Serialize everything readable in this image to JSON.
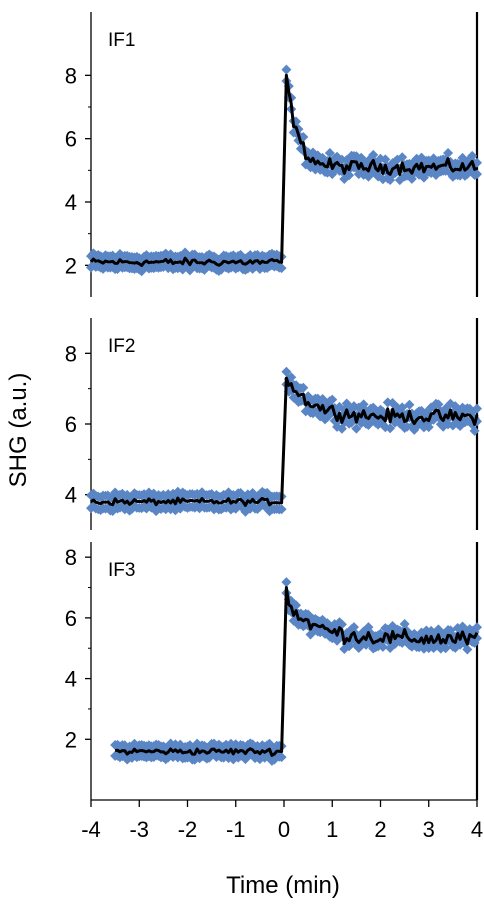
{
  "chart_data": {
    "type": "scatter",
    "shared_xlabel": "Time (min)",
    "shared_ylabel": "SHG (a.u.)",
    "xlim": [
      -4,
      4
    ],
    "x_ticks": [
      -4,
      -3,
      -2,
      -1,
      0,
      1,
      2,
      3,
      4
    ],
    "x_tick_labels": [
      "-4",
      "-3",
      "-2",
      "-1",
      "0",
      "1",
      "2",
      "3",
      "4"
    ],
    "marker_color": "#5b86c5",
    "line_color": "#000000",
    "panels": [
      {
        "label": "IF1",
        "ylim": [
          1,
          10
        ],
        "y_ticks": [
          2,
          4,
          6,
          8
        ],
        "y_tick_labels": [
          "2",
          "4",
          "6",
          "8"
        ],
        "x_start": -4.0,
        "series": [
          {
            "kind": "segment",
            "x_start": -4.0,
            "x_end": -0.05,
            "level": 2.1,
            "noise": 0.17
          },
          {
            "kind": "step",
            "x": 0.05,
            "peak": 8.0
          },
          {
            "kind": "decay",
            "x_start": 0.05,
            "x_end": 4.0,
            "from": 8.0,
            "to": 5.1,
            "rate": 0.22,
            "noise": 0.3
          }
        ]
      },
      {
        "label": "IF2",
        "ylim": [
          3,
          9
        ],
        "y_ticks": [
          4,
          6,
          8
        ],
        "y_tick_labels": [
          "4",
          "6",
          "8"
        ],
        "x_start": -4.0,
        "series": [
          {
            "kind": "segment",
            "x_start": -4.0,
            "x_end": -0.05,
            "level": 3.8,
            "noise": 0.13
          },
          {
            "kind": "step",
            "x": 0.05,
            "peak": 7.3
          },
          {
            "kind": "decay",
            "x_start": 0.05,
            "x_end": 4.0,
            "from": 7.3,
            "to": 6.2,
            "rate": 0.5,
            "noise": 0.28
          }
        ]
      },
      {
        "label": "IF3",
        "ylim": [
          0,
          8.5
        ],
        "y_ticks": [
          2,
          4,
          6,
          8
        ],
        "y_tick_labels": [
          "2",
          "4",
          "6",
          "8"
        ],
        "x_start": -3.5,
        "series": [
          {
            "kind": "segment",
            "x_start": -3.5,
            "x_end": -0.05,
            "level": 1.6,
            "noise": 0.15
          },
          {
            "kind": "step",
            "x": 0.05,
            "peak": 7.0
          },
          {
            "kind": "decay",
            "x_start": 0.05,
            "x_end": 4.0,
            "from": 6.5,
            "to": 5.3,
            "rate": 0.6,
            "noise": 0.38
          }
        ]
      }
    ]
  }
}
